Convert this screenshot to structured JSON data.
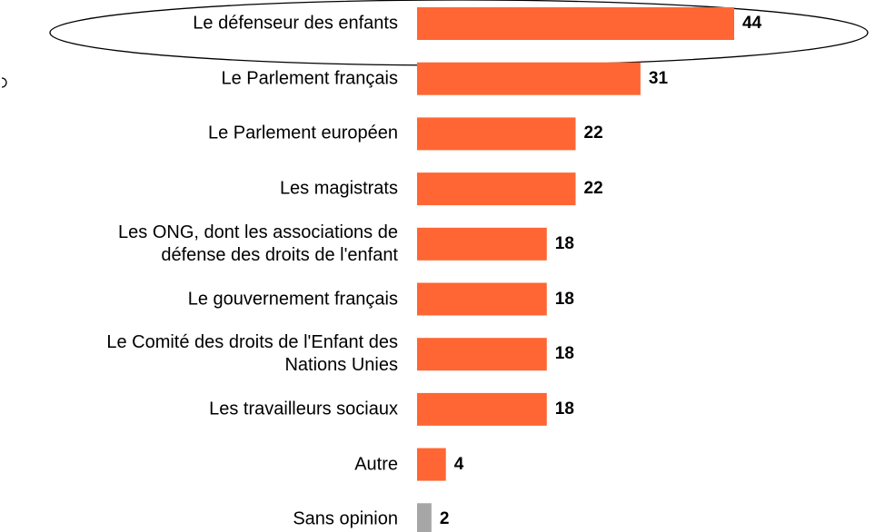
{
  "chart_data": {
    "type": "bar",
    "orientation": "horizontal",
    "categories": [
      "Le défenseur des enfants",
      "Le Parlement français",
      "Le Parlement européen",
      "Les magistrats",
      "Les ONG, dont les associations de\ndéfense des droits de l'enfant",
      "Le gouvernement français",
      "Le Comité des droits de l'Enfant des\nNations Unies",
      "Les travailleurs sociaux",
      "Autre",
      "Sans opinion"
    ],
    "values": [
      44,
      31,
      22,
      22,
      18,
      18,
      18,
      18,
      4,
      2
    ],
    "colors": [
      "#ff6633",
      "#ff6633",
      "#ff6633",
      "#ff6633",
      "#ff6633",
      "#ff6633",
      "#ff6633",
      "#ff6633",
      "#ff6633",
      "#a6a6a6"
    ]
  }
}
